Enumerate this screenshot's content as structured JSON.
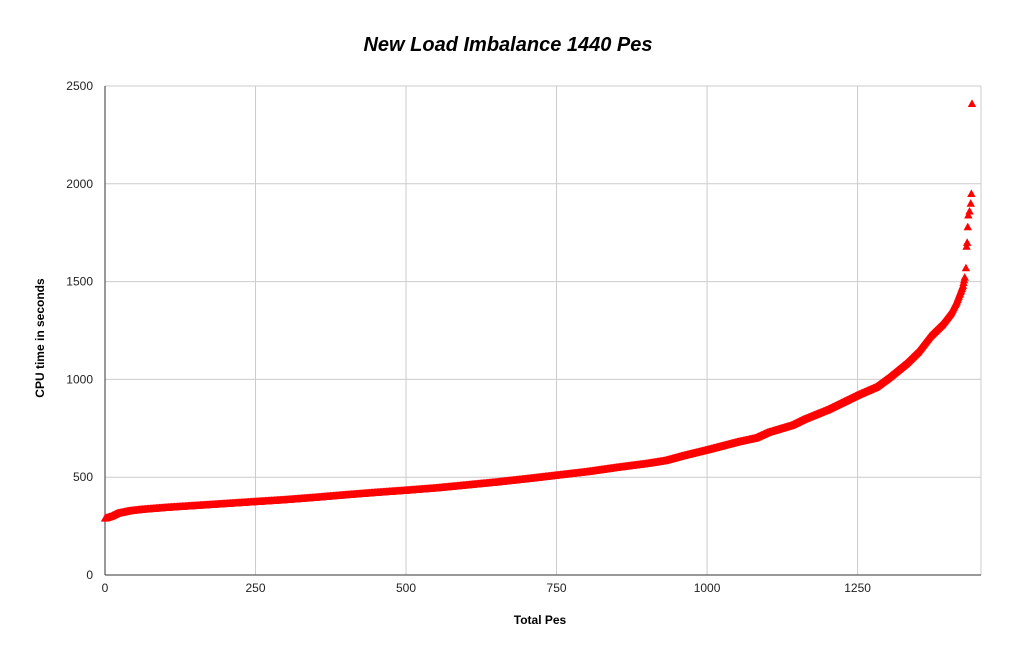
{
  "chart_data": {
    "type": "scatter",
    "title": "New Load Imbalance 1440 Pes",
    "xlabel": "Total Pes",
    "ylabel": "CPU time in seconds",
    "xlim": [
      0,
      1455
    ],
    "ylim": [
      0,
      2500
    ],
    "xticks": [
      "0",
      "250",
      "500",
      "750",
      "1000",
      "1250"
    ],
    "yticks": [
      "0",
      "500",
      "1000",
      "1500",
      "2000",
      "2500"
    ],
    "grid": true,
    "legend": "none",
    "marker": "triangle",
    "series": [
      {
        "color": "#ff0000",
        "count": 1440,
        "curve_anchors": [
          [
            0,
            290
          ],
          [
            10,
            300
          ],
          [
            20,
            315
          ],
          [
            40,
            328
          ],
          [
            60,
            335
          ],
          [
            80,
            340
          ],
          [
            100,
            345
          ],
          [
            150,
            355
          ],
          [
            200,
            365
          ],
          [
            250,
            375
          ],
          [
            300,
            385
          ],
          [
            350,
            397
          ],
          [
            400,
            410
          ],
          [
            450,
            422
          ],
          [
            500,
            433
          ],
          [
            550,
            445
          ],
          [
            600,
            460
          ],
          [
            650,
            475
          ],
          [
            700,
            492
          ],
          [
            750,
            510
          ],
          [
            800,
            528
          ],
          [
            850,
            550
          ],
          [
            900,
            570
          ],
          [
            930,
            585
          ],
          [
            960,
            610
          ],
          [
            1000,
            640
          ],
          [
            1050,
            680
          ],
          [
            1080,
            700
          ],
          [
            1100,
            728
          ],
          [
            1140,
            765
          ],
          [
            1160,
            795
          ],
          [
            1200,
            845
          ],
          [
            1250,
            920
          ],
          [
            1280,
            960
          ],
          [
            1300,
            1005
          ],
          [
            1330,
            1080
          ],
          [
            1350,
            1140
          ],
          [
            1370,
            1220
          ],
          [
            1390,
            1280
          ],
          [
            1405,
            1340
          ],
          [
            1415,
            1400
          ],
          [
            1425,
            1480
          ],
          [
            1430,
            1550
          ],
          [
            1433,
            1640
          ],
          [
            1436,
            1700
          ],
          [
            1439,
            1800
          ]
        ],
        "tail_points": [
          [
            1430,
            1570
          ],
          [
            1431,
            1680
          ],
          [
            1432,
            1700
          ],
          [
            1433,
            1780
          ],
          [
            1434,
            1840
          ],
          [
            1436,
            1860
          ],
          [
            1438,
            1900
          ],
          [
            1439,
            1950
          ],
          [
            1440,
            2410
          ]
        ]
      }
    ]
  }
}
